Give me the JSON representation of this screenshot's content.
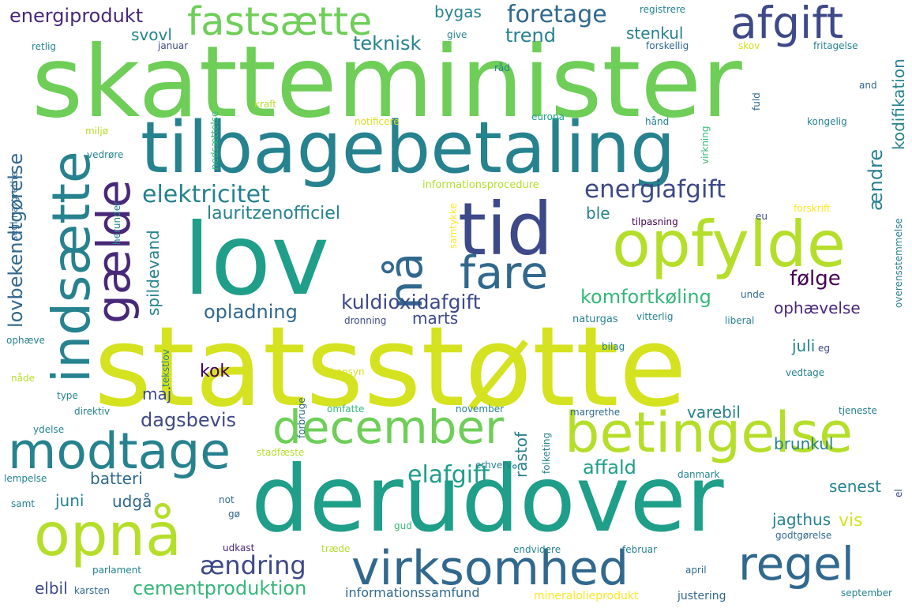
{
  "colors": {
    "background": "#ffffff",
    "palette": [
      "#440154",
      "#482878",
      "#3e4989",
      "#31688e",
      "#26828e",
      "#1f9e89",
      "#35b779",
      "#6ece58",
      "#b5de2b",
      "#d5e21f",
      "#fde725"
    ]
  },
  "words": [
    {
      "text": "statsstøtte",
      "color": "#d5e21f"
    },
    {
      "text": "skatteminister",
      "color": "#6ece58"
    },
    {
      "text": "derudover",
      "color": "#1f9e89"
    },
    {
      "text": "tilbagebetaling",
      "color": "#26828e"
    },
    {
      "text": "lov",
      "color": "#1f9e89"
    },
    {
      "text": "tid",
      "color": "#3e4989"
    },
    {
      "text": "opfylde",
      "color": "#b5de2b"
    },
    {
      "text": "opnå",
      "color": "#b5de2b"
    },
    {
      "text": "betingelse",
      "color": "#b5de2b"
    },
    {
      "text": "modtage",
      "color": "#26828e"
    },
    {
      "text": "virksomhed",
      "color": "#31688e"
    },
    {
      "text": "december",
      "color": "#6ece58"
    },
    {
      "text": "regel",
      "color": "#31688e"
    },
    {
      "text": "fastsætte",
      "color": "#6ece58"
    },
    {
      "text": "afgift",
      "color": "#3e4989"
    },
    {
      "text": "fare",
      "color": "#31688e"
    },
    {
      "text": "indsætte",
      "color": "#26828e"
    },
    {
      "text": "gælde",
      "color": "#482878"
    },
    {
      "text": "nå",
      "color": "#31688e"
    },
    {
      "text": "energiafgift",
      "color": "#3e4989"
    },
    {
      "text": "elektricitet",
      "color": "#26828e"
    },
    {
      "text": "ændring",
      "color": "#3e4989"
    },
    {
      "text": "elafgift",
      "color": "#1f9e89"
    },
    {
      "text": "foretage",
      "color": "#31688e"
    },
    {
      "text": "energiprodukt",
      "color": "#482878"
    },
    {
      "text": "kuldioxidafgift",
      "color": "#3e4989"
    },
    {
      "text": "komfortkøling",
      "color": "#35b779"
    },
    {
      "text": "følge",
      "color": "#440154"
    },
    {
      "text": "lauritzenofficiel",
      "color": "#26828e"
    },
    {
      "text": "lovbekendtgørelse",
      "color": "#31688e"
    },
    {
      "text": "cementproduktion",
      "color": "#35b779"
    },
    {
      "text": "affald",
      "color": "#1f9e89"
    },
    {
      "text": "dagsbevis",
      "color": "#3e4989"
    },
    {
      "text": "opladning",
      "color": "#31688e"
    },
    {
      "text": "trend",
      "color": "#26828e"
    },
    {
      "text": "teknisk",
      "color": "#26828e"
    },
    {
      "text": "svovl",
      "color": "#26828e"
    },
    {
      "text": "bygas",
      "color": "#26828e"
    },
    {
      "text": "stenkul",
      "color": "#26828e"
    },
    {
      "text": "ændre",
      "color": "#26828e"
    },
    {
      "text": "kodifikation",
      "color": "#26828e"
    },
    {
      "text": "ble",
      "color": "#26828e"
    },
    {
      "text": "spildevand",
      "color": "#26828e"
    },
    {
      "text": "marts",
      "color": "#3e4989"
    },
    {
      "text": "kok",
      "color": "#440154"
    },
    {
      "text": "maj",
      "color": "#3e4989"
    },
    {
      "text": "juli",
      "color": "#26828e"
    },
    {
      "text": "ophævelse",
      "color": "#482878"
    },
    {
      "text": "varebil",
      "color": "#26828e"
    },
    {
      "text": "råstof",
      "color": "#26828e"
    },
    {
      "text": "brunkul",
      "color": "#26828e"
    },
    {
      "text": "senest",
      "color": "#26828e"
    },
    {
      "text": "batteri",
      "color": "#31688e"
    },
    {
      "text": "juni",
      "color": "#26828e"
    },
    {
      "text": "udgå",
      "color": "#31688e"
    },
    {
      "text": "jagthus",
      "color": "#26828e"
    },
    {
      "text": "vis",
      "color": "#d5e21f"
    },
    {
      "text": "elbil",
      "color": "#3e4989"
    },
    {
      "text": "informationssamfund",
      "color": "#31688e"
    },
    {
      "text": "mineralolieprodukt",
      "color": "#fde725"
    },
    {
      "text": "justering",
      "color": "#31688e"
    },
    {
      "text": "registrere",
      "color": "#26828e"
    },
    {
      "text": "give",
      "color": "#26828e"
    },
    {
      "text": "forskellig",
      "color": "#31688e"
    },
    {
      "text": "skov",
      "color": "#d5e21f"
    },
    {
      "text": "fritagelse",
      "color": "#26828e"
    },
    {
      "text": "retlig",
      "color": "#26828e"
    },
    {
      "text": "januar",
      "color": "#3e4989"
    },
    {
      "text": "råd",
      "color": "#26828e"
    },
    {
      "text": "kraft",
      "color": "#b5de2b"
    },
    {
      "text": "notificere",
      "color": "#d5e21f"
    },
    {
      "text": "europa",
      "color": "#1f9e89"
    },
    {
      "text": "hånd",
      "color": "#26828e"
    },
    {
      "text": "kongelig",
      "color": "#26828e"
    },
    {
      "text": "miljø",
      "color": "#b5de2b"
    },
    {
      "text": "vedrøre",
      "color": "#26828e"
    },
    {
      "text": "informationsprocedure",
      "color": "#b5de2b"
    },
    {
      "text": "forskrift",
      "color": "#fde725"
    },
    {
      "text": "tilpasning",
      "color": "#440154"
    },
    {
      "text": "eu",
      "color": "#3e4989"
    },
    {
      "text": "unde",
      "color": "#31688e"
    },
    {
      "text": "naturgas",
      "color": "#26828e"
    },
    {
      "text": "vitterlig",
      "color": "#26828e"
    },
    {
      "text": "liberal",
      "color": "#26828e"
    },
    {
      "text": "dronning",
      "color": "#3e4989"
    },
    {
      "text": "bilag",
      "color": "#26828e"
    },
    {
      "text": "eg",
      "color": "#3e4989"
    },
    {
      "text": "vedtage",
      "color": "#26828e"
    },
    {
      "text": "ophæve",
      "color": "#26828e"
    },
    {
      "text": "nåde",
      "color": "#b5de2b"
    },
    {
      "text": "hensyn",
      "color": "#d5e21f"
    },
    {
      "text": "type",
      "color": "#26828e"
    },
    {
      "text": "direktiv",
      "color": "#26828e"
    },
    {
      "text": "omfatte",
      "color": "#35b779"
    },
    {
      "text": "november",
      "color": "#26828e"
    },
    {
      "text": "margrethe",
      "color": "#31688e"
    },
    {
      "text": "tjeneste",
      "color": "#26828e"
    },
    {
      "text": "ydelse",
      "color": "#26828e"
    },
    {
      "text": "stadfæste",
      "color": "#b5de2b"
    },
    {
      "text": "erhverv",
      "color": "#26828e"
    },
    {
      "text": "danmark",
      "color": "#26828e"
    },
    {
      "text": "lempelse",
      "color": "#26828e"
    },
    {
      "text": "samt",
      "color": "#26828e"
    },
    {
      "text": "not",
      "color": "#31688e"
    },
    {
      "text": "gø",
      "color": "#31688e"
    },
    {
      "text": "gud",
      "color": "#35b779"
    },
    {
      "text": "udkast",
      "color": "#482878"
    },
    {
      "text": "træde",
      "color": "#b5de2b"
    },
    {
      "text": "endvidere",
      "color": "#26828e"
    },
    {
      "text": "februar",
      "color": "#26828e"
    },
    {
      "text": "godtgørelse",
      "color": "#31688e"
    },
    {
      "text": "parlament",
      "color": "#26828e"
    },
    {
      "text": "karsten",
      "color": "#31688e"
    },
    {
      "text": "april",
      "color": "#31688e"
    },
    {
      "text": "september",
      "color": "#26828e"
    },
    {
      "text": "and",
      "color": "#31688e"
    },
    {
      "text": "fuld",
      "color": "#31688e"
    },
    {
      "text": "nedsættelse",
      "color": "#35b779"
    },
    {
      "text": "virkning",
      "color": "#35b779"
    },
    {
      "text": "samtykke",
      "color": "#fde725"
    },
    {
      "text": "seglmargrethe",
      "color": "#31688e"
    },
    {
      "text": "herunder",
      "color": "#26828e"
    },
    {
      "text": "tekstlov",
      "color": "#26828e"
    },
    {
      "text": "forbruge",
      "color": "#31688e"
    },
    {
      "text": "folketing",
      "color": "#26828e"
    },
    {
      "text": "overensstemmelse",
      "color": "#26828e"
    },
    {
      "text": "el",
      "color": "#3e4989"
    }
  ]
}
